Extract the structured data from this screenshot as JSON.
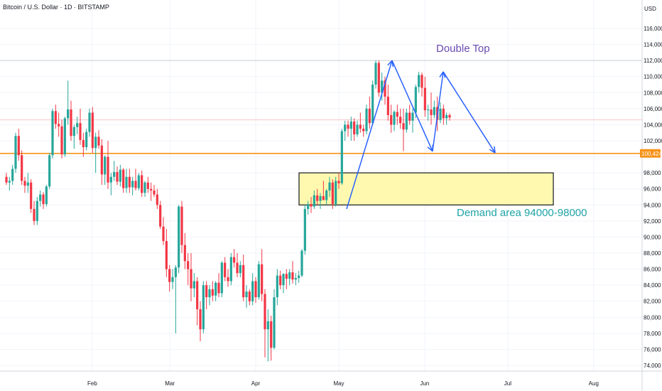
{
  "header": {
    "title": "Bitcoin / U.S. Dollar · 1D · BITSTAMP"
  },
  "colors": {
    "up": "#26a69a",
    "down": "#f23645",
    "orange": "#f7931a",
    "blue": "#2962ff",
    "zone_fill": "#fff9b0",
    "purple": "#6a4bb2",
    "teal": "#1fa3a6"
  },
  "chart_data": {
    "type": "candlestick",
    "currency_label": "USD",
    "y_ticks": [
      74000,
      76000,
      78000,
      80000,
      82000,
      84000,
      86000,
      88000,
      90000,
      92000,
      94000,
      96000,
      98000,
      100000,
      102000,
      104000,
      106000,
      108000,
      110000,
      112000,
      114000,
      116000
    ],
    "y_tick_labels": [
      "74,000",
      "76,000",
      "78,000",
      "80,000",
      "82,000",
      "84,000",
      "86,000",
      "88,000",
      "90,000",
      "92,000",
      "94,000",
      "96,000",
      "98,000",
      "100,000",
      "102,000",
      "104,000",
      "106,000",
      "108,000",
      "110,000",
      "112,000",
      "114,000",
      "116,000"
    ],
    "x_labels": [
      {
        "label": "Feb",
        "day": 31
      },
      {
        "label": "Mar",
        "day": 59
      },
      {
        "label": "Apr",
        "day": 90
      },
      {
        "label": "May",
        "day": 120
      },
      {
        "label": "Jun",
        "day": 151
      },
      {
        "label": "Jul",
        "day": 181
      },
      {
        "label": "Aug",
        "day": 212
      }
    ],
    "price_label": "100,424",
    "price_line": 100424,
    "resistance_line": 112000,
    "annotations": [
      {
        "text": "Double Top"
      },
      {
        "text": "Demand area 94000-98000"
      }
    ],
    "demand_zone": {
      "low": 94000,
      "high": 98000
    },
    "key_points": [
      [
        93500,
        1
      ],
      [
        112000,
        2
      ],
      [
        100700,
        3
      ],
      [
        110600,
        4
      ],
      [
        100500,
        5
      ]
    ],
    "candles": [
      [
        97500,
        98000,
        96500,
        96800
      ],
      [
        96800,
        97500,
        95800,
        97000
      ],
      [
        97000,
        99000,
        96500,
        98500
      ],
      [
        98500,
        103000,
        98000,
        102600
      ],
      [
        102600,
        103500,
        99500,
        100200
      ],
      [
        100200,
        100800,
        96500,
        97000
      ],
      [
        97000,
        97500,
        95500,
        96400
      ],
      [
        96400,
        98000,
        95500,
        96800
      ],
      [
        96800,
        97200,
        93000,
        93500
      ],
      [
        93500,
        94500,
        91500,
        92000
      ],
      [
        92000,
        95000,
        91500,
        94500
      ],
      [
        94500,
        95800,
        93800,
        95300
      ],
      [
        95300,
        95600,
        93500,
        94100
      ],
      [
        94100,
        96500,
        93800,
        96300
      ],
      [
        96300,
        100500,
        96000,
        100200
      ],
      [
        100200,
        106000,
        99800,
        105700
      ],
      [
        105700,
        106500,
        103500,
        104100
      ],
      [
        104100,
        105500,
        102500,
        103800
      ],
      [
        103800,
        104600,
        99800,
        100300
      ],
      [
        100300,
        105000,
        100000,
        104800
      ],
      [
        104800,
        109500,
        104000,
        105900
      ],
      [
        105900,
        107000,
        102000,
        102600
      ],
      [
        102600,
        104000,
        101000,
        103700
      ],
      [
        103700,
        105000,
        102800,
        104200
      ],
      [
        104200,
        106000,
        101500,
        102100
      ],
      [
        102100,
        103000,
        100000,
        101200
      ],
      [
        101200,
        103500,
        100800,
        103100
      ],
      [
        103100,
        106000,
        102500,
        105500
      ],
      [
        105500,
        106200,
        100500,
        101100
      ],
      [
        101100,
        103000,
        98000,
        102500
      ],
      [
        102500,
        103300,
        101000,
        101400
      ],
      [
        101400,
        102200,
        96500,
        97800
      ],
      [
        97800,
        100200,
        96500,
        100000
      ],
      [
        100000,
        102000,
        96000,
        96800
      ],
      [
        96800,
        98000,
        95200,
        97500
      ],
      [
        97500,
        99500,
        97000,
        98100
      ],
      [
        98100,
        98800,
        96500,
        96900
      ],
      [
        96900,
        99000,
        96300,
        98400
      ],
      [
        98400,
        98600,
        95500,
        96100
      ],
      [
        96100,
        98500,
        95500,
        97500
      ],
      [
        97500,
        98500,
        95500,
        96200
      ],
      [
        96200,
        97500,
        95200,
        97000
      ],
      [
        97000,
        98500,
        95800,
        96100
      ],
      [
        96100,
        98000,
        95800,
        97700
      ],
      [
        97700,
        98300,
        95000,
        95500
      ],
      [
        95500,
        97000,
        95000,
        96800
      ],
      [
        96800,
        97500,
        95500,
        96000
      ],
      [
        96000,
        96800,
        94500,
        95800
      ],
      [
        95800,
        96500,
        95000,
        95300
      ],
      [
        95300,
        96000,
        93500,
        94000
      ],
      [
        94000,
        94500,
        91000,
        91300
      ],
      [
        91300,
        92500,
        89000,
        89500
      ],
      [
        89500,
        91000,
        85000,
        86000
      ],
      [
        86000,
        86500,
        83200,
        84400
      ],
      [
        84400,
        86000,
        83500,
        85000
      ],
      [
        85000,
        86500,
        78000,
        86200
      ],
      [
        86200,
        94000,
        85500,
        93800
      ],
      [
        93800,
        94500,
        88000,
        89000
      ],
      [
        89000,
        90500,
        86000,
        87000
      ],
      [
        87000,
        88000,
        84000,
        86000
      ],
      [
        86000,
        88000,
        82000,
        83600
      ],
      [
        83600,
        85500,
        82500,
        84500
      ],
      [
        84500,
        85000,
        79000,
        81000
      ],
      [
        81000,
        82000,
        77000,
        78500
      ],
      [
        78500,
        84500,
        78000,
        84000
      ],
      [
        84000,
        84500,
        81000,
        82500
      ],
      [
        82500,
        84000,
        81500,
        83500
      ],
      [
        83500,
        84500,
        82000,
        82700
      ],
      [
        82700,
        84500,
        82000,
        84300
      ],
      [
        84300,
        85500,
        82500,
        83000
      ],
      [
        83000,
        87000,
        82500,
        86800
      ],
      [
        86800,
        87500,
        84500,
        85000
      ],
      [
        85000,
        86000,
        83800,
        84500
      ],
      [
        84500,
        88000,
        84000,
        87500
      ],
      [
        87500,
        88500,
        86200,
        86800
      ],
      [
        86800,
        88000,
        85000,
        85500
      ],
      [
        85500,
        87000,
        85000,
        86500
      ],
      [
        86500,
        87800,
        82000,
        82500
      ],
      [
        82500,
        84000,
        81200,
        83200
      ],
      [
        83200,
        83500,
        81500,
        82000
      ],
      [
        82000,
        85500,
        81500,
        84500
      ],
      [
        84500,
        85000,
        81800,
        82500
      ],
      [
        82500,
        87000,
        82200,
        86600
      ],
      [
        86600,
        88500,
        82000,
        82900
      ],
      [
        82900,
        83500,
        75000,
        78500
      ],
      [
        78500,
        81000,
        74500,
        79500
      ],
      [
        79500,
        80200,
        74600,
        76200
      ],
      [
        76200,
        83500,
        76000,
        82500
      ],
      [
        82500,
        86000,
        81500,
        85200
      ],
      [
        85200,
        85800,
        83500,
        84000
      ],
      [
        84000,
        85500,
        83000,
        85400
      ],
      [
        85400,
        86000,
        83500,
        84800
      ],
      [
        84800,
        86000,
        84000,
        85600
      ],
      [
        85600,
        87000,
        84200,
        84700
      ],
      [
        84700,
        85500,
        84000,
        84900
      ],
      [
        84900,
        85800,
        84300,
        85200
      ],
      [
        85200,
        88500,
        85000,
        88300
      ],
      [
        88300,
        94000,
        87800,
        93500
      ],
      [
        93500,
        94500,
        92800,
        94100
      ],
      [
        94100,
        95000,
        93000,
        93800
      ],
      [
        93800,
        95800,
        93500,
        95200
      ],
      [
        95200,
        96000,
        94000,
        94500
      ],
      [
        94500,
        95500,
        93500,
        95100
      ],
      [
        95100,
        97000,
        94800,
        94600
      ],
      [
        94600,
        96000,
        94000,
        95800
      ],
      [
        95800,
        97500,
        95000,
        96800
      ],
      [
        96800,
        97200,
        93500,
        94100
      ],
      [
        94100,
        97500,
        93800,
        97000
      ],
      [
        97000,
        98000,
        96000,
        96700
      ],
      [
        96700,
        103500,
        96500,
        103200
      ],
      [
        103200,
        104500,
        102000,
        104000
      ],
      [
        104000,
        104500,
        102500,
        103500
      ],
      [
        103500,
        105000,
        102000,
        104400
      ],
      [
        104400,
        104800,
        102000,
        102800
      ],
      [
        102800,
        104500,
        102500,
        104000
      ],
      [
        104000,
        105500,
        103000,
        103500
      ],
      [
        103500,
        104000,
        102500,
        103200
      ],
      [
        103200,
        106500,
        102800,
        106000
      ],
      [
        106000,
        107500,
        103500,
        104200
      ],
      [
        104200,
        109500,
        104000,
        109000
      ],
      [
        109000,
        112000,
        108500,
        111700
      ],
      [
        111700,
        112000,
        107500,
        108000
      ],
      [
        108000,
        110500,
        107000,
        109500
      ],
      [
        109500,
        110000,
        106500,
        107500
      ],
      [
        107500,
        109000,
        104500,
        105200
      ],
      [
        105200,
        106500,
        103000,
        104000
      ],
      [
        104000,
        105800,
        103200,
        105600
      ],
      [
        105600,
        106500,
        104000,
        105000
      ],
      [
        105000,
        106000,
        103500,
        104200
      ],
      [
        104200,
        106000,
        100700,
        103400
      ],
      [
        103400,
        106000,
        103000,
        105500
      ],
      [
        105500,
        106500,
        104000,
        104500
      ],
      [
        104500,
        106000,
        103000,
        105500
      ],
      [
        105500,
        109000,
        104800,
        108700
      ],
      [
        108700,
        110600,
        108000,
        110200
      ],
      [
        110200,
        110500,
        107500,
        108600
      ],
      [
        108600,
        110000,
        105000,
        105800
      ],
      [
        105800,
        106500,
        104500,
        105900
      ],
      [
        105900,
        108000,
        104000,
        105200
      ],
      [
        105200,
        107000,
        104800,
        106200
      ],
      [
        106200,
        107500,
        103200,
        104600
      ],
      [
        104600,
        106800,
        104200,
        106000
      ],
      [
        106000,
        106500,
        104000,
        104800
      ],
      [
        104800,
        105500,
        104000,
        105200
      ],
      [
        105200,
        105400,
        104500,
        104900
      ]
    ]
  }
}
